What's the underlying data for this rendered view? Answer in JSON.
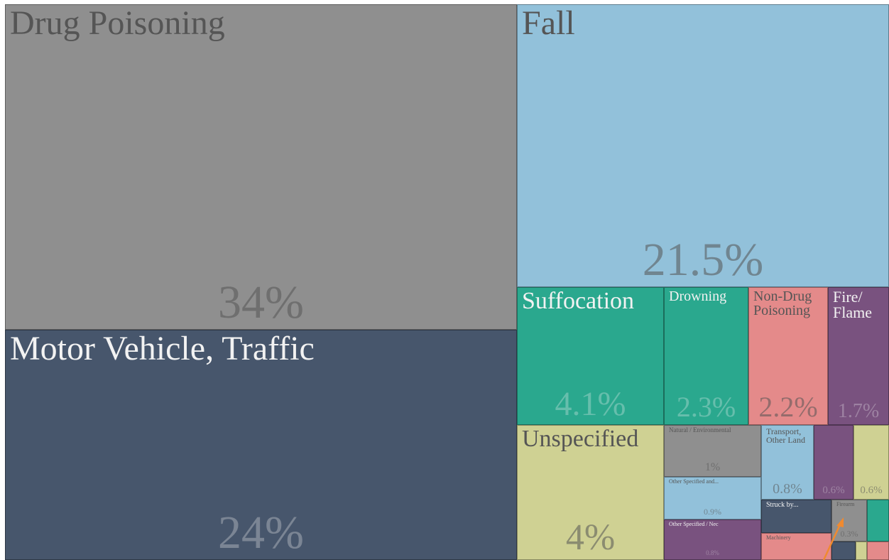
{
  "chart_data": {
    "type": "treemap",
    "categories": [
      "Drug Poisoning",
      "Motor Vehicle, Traffic",
      "Fall",
      "Suffocation",
      "Drowning",
      "Non-Drug Poisoning",
      "Fire/ Flame",
      "Unspecified",
      "Natural / Environmental",
      "Other Specified and...",
      "Other Specified / Nec",
      "Transport, Other Land",
      null,
      null,
      "Struck by...",
      "Firearm",
      null,
      "Machinery",
      null,
      null,
      null
    ],
    "values": [
      34,
      24,
      21.5,
      4.1,
      2.3,
      2.2,
      1.7,
      4,
      1,
      0.9,
      0.8,
      0.8,
      0.6,
      0.6,
      0.4,
      0.3,
      0.2,
      0.3,
      0.1,
      0.05,
      0.1
    ],
    "value_labels": [
      "34%",
      "24%",
      "21.5%",
      "4.1%",
      "2.3%",
      "2.2%",
      "1.7%",
      "4%",
      "1%",
      "0.9%",
      "0.8%",
      "0.8%",
      "0.6%",
      "0.6%",
      null,
      "0.3%",
      null,
      null,
      null,
      null,
      null
    ],
    "colors": [
      "#8f8f8f",
      "#47566c",
      "#92c1da",
      "#2aa88e",
      "#2aa88e",
      "#e48a8a",
      "#79527f",
      "#cfd193",
      "#8f8f8f",
      "#92c1da",
      "#79527f",
      "#92c1da",
      "#79527f",
      "#cfd193",
      "#47566c",
      "#8f8f8f",
      "#2aa88e",
      "#e48a8a",
      "#47566c",
      "#cfd193",
      "#e48a8a"
    ]
  }
}
